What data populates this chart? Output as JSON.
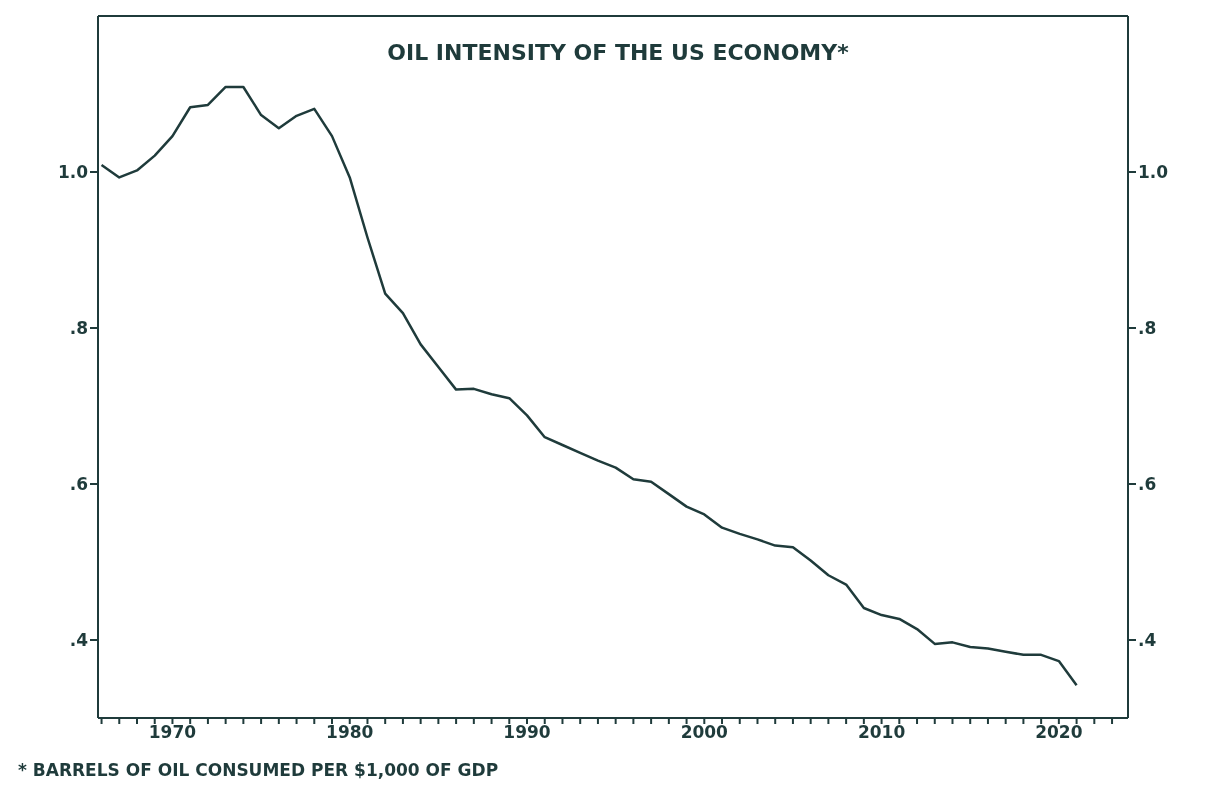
{
  "chart_data": {
    "type": "line",
    "title": "OIL INTENSITY OF THE US ECONOMY*",
    "annotations": [
      "* BARRELS OF OIL CONSUMED PER $1,000 OF GDP"
    ],
    "x": [
      1966,
      1967,
      1968,
      1969,
      1970,
      1971,
      1972,
      1973,
      1974,
      1975,
      1976,
      1977,
      1978,
      1979,
      1980,
      1981,
      1982,
      1983,
      1984,
      1985,
      1986,
      1987,
      1988,
      1989,
      1990,
      1991,
      1992,
      1993,
      1994,
      1995,
      1996,
      1997,
      1998,
      1999,
      2000,
      2001,
      2002,
      2003,
      2004,
      2005,
      2006,
      2007,
      2008,
      2009,
      2010,
      2011,
      2012,
      2013,
      2014,
      2015,
      2016,
      2017,
      2018,
      2019,
      2020,
      2021
    ],
    "series": [
      {
        "color": "#1f3b3b",
        "values": [
          1.009,
          0.993,
          1.002,
          1.021,
          1.046,
          1.083,
          1.086,
          1.109,
          1.109,
          1.073,
          1.056,
          1.072,
          1.081,
          1.046,
          0.993,
          0.916,
          0.844,
          0.819,
          0.779,
          0.75,
          0.721,
          0.722,
          0.715,
          0.71,
          0.688,
          0.66,
          0.65,
          0.64,
          0.63,
          0.621,
          0.606,
          0.603,
          0.587,
          0.571,
          0.561,
          0.544,
          0.536,
          0.529,
          0.521,
          0.519,
          0.502,
          0.483,
          0.471,
          0.441,
          0.432,
          0.427,
          0.414,
          0.395,
          0.397,
          0.391,
          0.389,
          0.385,
          0.381,
          0.381,
          0.373,
          0.342
        ]
      }
    ],
    "xlim": [
      1965.8,
      2023.9
    ],
    "xticks": [
      {
        "value": 1966,
        "label": null
      },
      {
        "value": 1967,
        "label": null
      },
      {
        "value": 1968,
        "label": null
      },
      {
        "value": 1969,
        "label": null
      },
      1970,
      {
        "value": 1971,
        "label": null
      },
      {
        "value": 1972,
        "label": null
      },
      {
        "value": 1973,
        "label": null
      },
      {
        "value": 1974,
        "label": null
      },
      {
        "value": 1975,
        "label": null
      },
      {
        "value": 1976,
        "label": null
      },
      {
        "value": 1977,
        "label": null
      },
      {
        "value": 1978,
        "label": null
      },
      {
        "value": 1979,
        "label": null
      },
      1980,
      {
        "value": 1981,
        "label": null
      },
      {
        "value": 1982,
        "label": null
      },
      {
        "value": 1983,
        "label": null
      },
      {
        "value": 1984,
        "label": null
      },
      {
        "value": 1985,
        "label": null
      },
      {
        "value": 1986,
        "label": null
      },
      {
        "value": 1987,
        "label": null
      },
      {
        "value": 1988,
        "label": null
      },
      {
        "value": 1989,
        "label": null
      },
      1990,
      {
        "value": 1991,
        "label": null
      },
      {
        "value": 1992,
        "label": null
      },
      {
        "value": 1993,
        "label": null
      },
      {
        "value": 1994,
        "label": null
      },
      {
        "value": 1995,
        "label": null
      },
      {
        "value": 1996,
        "label": null
      },
      {
        "value": 1997,
        "label": null
      },
      {
        "value": 1998,
        "label": null
      },
      {
        "value": 1999,
        "label": null
      },
      2000,
      {
        "value": 2001,
        "label": null
      },
      {
        "value": 2002,
        "label": null
      },
      {
        "value": 2003,
        "label": null
      },
      {
        "value": 2004,
        "label": null
      },
      {
        "value": 2005,
        "label": null
      },
      {
        "value": 2006,
        "label": null
      },
      {
        "value": 2007,
        "label": null
      },
      {
        "value": 2008,
        "label": null
      },
      {
        "value": 2009,
        "label": null
      },
      2010,
      {
        "value": 2011,
        "label": null
      },
      {
        "value": 2012,
        "label": null
      },
      {
        "value": 2013,
        "label": null
      },
      {
        "value": 2014,
        "label": null
      },
      {
        "value": 2015,
        "label": null
      },
      {
        "value": 2016,
        "label": null
      },
      {
        "value": 2017,
        "label": null
      },
      {
        "value": 2018,
        "label": null
      },
      {
        "value": 2019,
        "label": null
      },
      2020,
      {
        "value": 2021,
        "label": null
      },
      {
        "value": 2022,
        "label": null
      },
      {
        "value": 2023,
        "label": null
      }
    ],
    "ylim": [
      0.3,
      1.2
    ],
    "yticks": [
      {
        "value": 0.4,
        "label": ".4"
      },
      {
        "value": 0.6,
        "label": ".6"
      },
      {
        "value": 0.8,
        "label": ".8"
      },
      {
        "value": 1.0,
        "label": "1.0"
      }
    ],
    "y2lim": [
      0.3,
      1.2
    ],
    "y2ticks": [
      {
        "value": 0.4,
        "label": ".4"
      },
      {
        "value": 0.6,
        "label": ".6"
      },
      {
        "value": 0.8,
        "label": ".8"
      },
      {
        "value": 1.0,
        "label": "1.0"
      }
    ],
    "grid": false,
    "legend": false,
    "marker": "none",
    "line_style": "solid"
  }
}
